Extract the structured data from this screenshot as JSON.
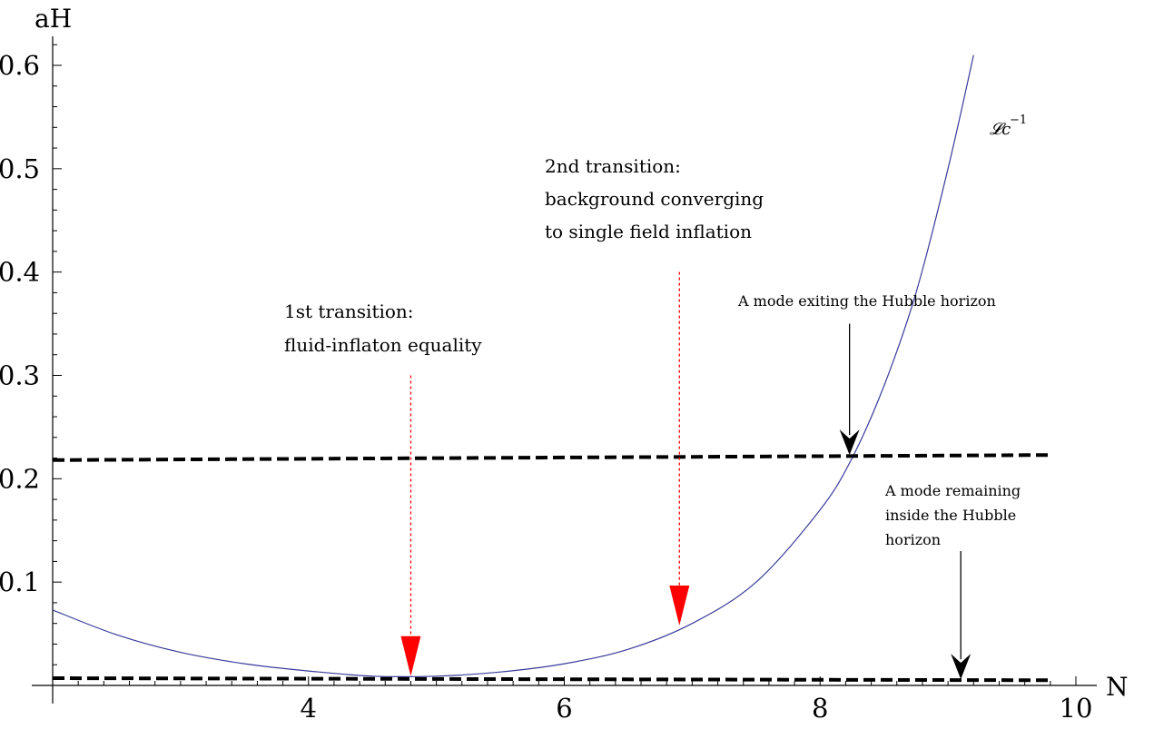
{
  "chart_data": {
    "type": "line",
    "xlabel": "N",
    "ylabel": "aH",
    "xlim": [
      2,
      10
    ],
    "ylim": [
      0,
      0.6
    ],
    "x_ticks": [
      4,
      6,
      8,
      10
    ],
    "x_tick_labels": [
      "4",
      "6",
      "8",
      "10"
    ],
    "y_ticks": [
      0.1,
      0.2,
      0.3,
      0.4,
      0.5,
      0.6
    ],
    "y_tick_labels": [
      "0.1",
      "0.2",
      "0.3",
      "0.4",
      "0.5",
      "0.6"
    ],
    "grid": false,
    "series": [
      {
        "name": "𝓛c",
        "name_superscript": "−1",
        "color": "#3b3b9b",
        "style": "solid",
        "x": [
          2.0,
          2.5,
          3.0,
          3.5,
          4.0,
          4.5,
          5.0,
          5.5,
          6.0,
          6.5,
          7.0,
          7.5,
          8.0,
          8.25,
          8.5,
          8.75,
          9.0,
          9.2
        ],
        "y": [
          0.073,
          0.049,
          0.032,
          0.021,
          0.014,
          0.009,
          0.009,
          0.013,
          0.021,
          0.035,
          0.06,
          0.1,
          0.17,
          0.22,
          0.29,
          0.38,
          0.5,
          0.61
        ]
      },
      {
        "name": "",
        "color": "#000000",
        "style": "dashed",
        "x": [
          2.0,
          9.8
        ],
        "y": [
          0.218,
          0.223
        ]
      },
      {
        "name": "",
        "color": "#000000",
        "style": "dashed",
        "x": [
          2.0,
          9.8
        ],
        "y": [
          0.007,
          0.005
        ]
      }
    ],
    "annotations": [
      {
        "lines": [
          "1st transition:",
          "fluid-inflaton equality"
        ],
        "arrow_color": "#ff0000",
        "arrow_style": "dotted",
        "arrow_x": 4.8,
        "arrow_from_y": 0.3,
        "arrow_to_y": 0.009
      },
      {
        "lines": [
          "2nd transition:",
          "background converging",
          "to single field inflation"
        ],
        "arrow_color": "#ff0000",
        "arrow_style": "dotted",
        "arrow_x": 6.9,
        "arrow_from_y": 0.4,
        "arrow_to_y": 0.058
      },
      {
        "lines": [
          "A mode exiting the Hubble horizon"
        ],
        "arrow_color": "#000000",
        "arrow_style": "solid",
        "arrow_x": 8.23,
        "arrow_from_y": 0.35,
        "arrow_to_y": 0.223
      },
      {
        "lines": [
          "A mode remaining",
          "inside the Hubble",
          "horizon"
        ],
        "arrow_color": "#000000",
        "arrow_style": "solid",
        "arrow_x": 9.1,
        "arrow_from_y": 0.13,
        "arrow_to_y": 0.006
      }
    ]
  }
}
